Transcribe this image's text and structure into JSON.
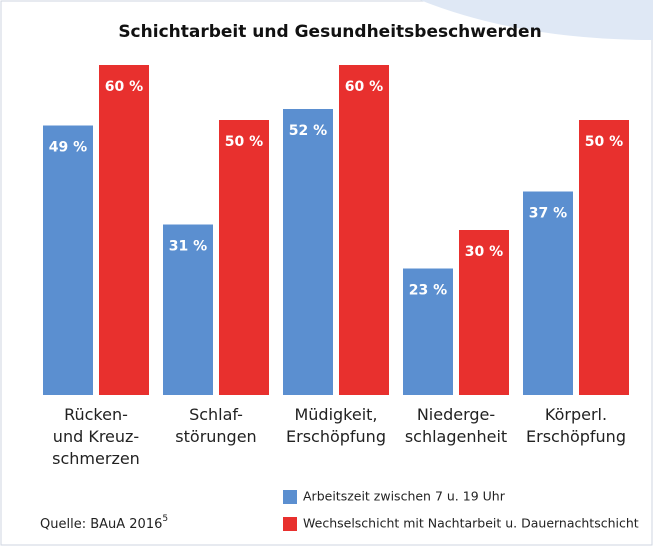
{
  "chart_data": {
    "type": "bar",
    "title": "Schichtarbeit  und Gesundheitsbeschwerden",
    "categories": [
      "Rücken-\nund Kreuz-\nschmerzen",
      "Schlaf-\nstörungen",
      "Müdigkeit,\nErschöpfung",
      "Niederge-\nschlagenheit",
      "Körperl.\nErschöpfung"
    ],
    "series": [
      {
        "name": "Arbeitszeit zwischen 7 u. 19 Uhr",
        "color": "#5b8fd0",
        "values": [
          49,
          31,
          52,
          23,
          37
        ],
        "value_labels": [
          "49 %",
          "31 %",
          "52 %",
          "23 %",
          "37 %"
        ]
      },
      {
        "name": "Wechselschicht mit Nachtarbeit u. Dauernachtschicht",
        "color": "#e8302e",
        "values": [
          60,
          50,
          60,
          30,
          50
        ],
        "value_labels": [
          "60 %",
          "50 %",
          "60 %",
          "30 %",
          "50 %"
        ]
      }
    ],
    "source": "Quelle: BAuA 2016",
    "source_note": "5"
  }
}
